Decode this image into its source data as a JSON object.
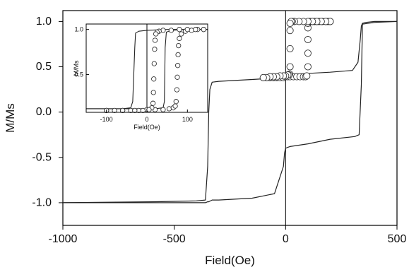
{
  "chart_data": [
    {
      "id": "main",
      "type": "line",
      "title": "",
      "xlabel": "Field(Oe)",
      "ylabel": "M/Ms",
      "xlim": [
        -1000,
        500
      ],
      "ylim": [
        -1.25,
        1.12
      ],
      "x_ticks": [
        -1000,
        -500,
        0,
        500
      ],
      "x_tick_labels": [
        "-1000",
        "-500",
        "0",
        "500"
      ],
      "y_ticks": [
        1.0,
        0.5,
        0.0,
        -0.5,
        -1.0
      ],
      "y_tick_labels": [
        "1.0",
        "0.5",
        "0.0",
        "-0.5",
        "-1.0"
      ],
      "grid": false,
      "vertical_reference_line_x": 0,
      "series": [
        {
          "style": "solid-line",
          "x": [
            -1000,
            -600,
            -400,
            -360,
            -350,
            -345,
            -340,
            -330,
            -300,
            -150,
            -50,
            -15,
            -5,
            0,
            5,
            15,
            50,
            200,
            300,
            325,
            335,
            340,
            345,
            360,
            400,
            500
          ],
          "y": [
            -1.0,
            -0.99,
            -0.98,
            -0.97,
            -0.6,
            0.0,
            0.25,
            0.33,
            0.34,
            0.36,
            0.375,
            0.38,
            0.39,
            0.4,
            0.4,
            0.41,
            0.42,
            0.44,
            0.46,
            0.55,
            0.8,
            0.95,
            0.98,
            0.99,
            1.0,
            1.0
          ]
        },
        {
          "style": "solid-line",
          "x": [
            500,
            400,
            345,
            340,
            330,
            310,
            200,
            100,
            20,
            8,
            0,
            -5,
            -10,
            -50,
            -150,
            -300,
            -330,
            -338,
            -345,
            -350,
            -360,
            -400,
            -600,
            -1000
          ],
          "y": [
            1.0,
            0.99,
            0.97,
            0.3,
            -0.25,
            -0.27,
            -0.3,
            -0.35,
            -0.38,
            -0.39,
            -0.4,
            -0.45,
            -0.6,
            -0.9,
            -0.95,
            -0.97,
            -0.97,
            -0.98,
            -0.99,
            -0.99,
            -1.0,
            -1.0,
            -1.0,
            -1.0
          ]
        },
        {
          "style": "open-circles",
          "x": [
            -100,
            -85,
            -70,
            -55,
            -40,
            -25,
            -10,
            0,
            10,
            20,
            35,
            50,
            65,
            80,
            90,
            95,
            100,
            100,
            100,
            100,
            100,
            105,
            110,
            120,
            130,
            140,
            150,
            165,
            180,
            190,
            200
          ],
          "y": [
            0.38,
            0.38,
            0.38,
            0.38,
            0.38,
            0.38,
            0.38,
            0.39,
            0.39,
            0.39,
            0.39,
            0.39,
            0.39,
            0.39,
            0.39,
            0.4,
            0.5,
            0.65,
            0.8,
            0.93,
            0.98,
            1.0,
            1.0,
            1.0,
            1.0,
            1.0,
            1.0,
            1.0,
            1.0,
            1.0,
            1.0
          ]
        },
        {
          "style": "open-circles",
          "x": [
            200,
            180,
            160,
            140,
            120,
            100,
            80,
            60,
            40,
            30,
            25,
            20,
            20,
            20,
            20,
            18,
            15,
            10,
            0,
            -10,
            -25,
            -40,
            -55,
            -70,
            -85,
            -100
          ],
          "y": [
            1.0,
            1.0,
            1.0,
            1.0,
            1.0,
            1.0,
            1.0,
            1.0,
            1.0,
            1.0,
            1.0,
            0.98,
            0.9,
            0.7,
            0.5,
            0.42,
            0.41,
            0.41,
            0.4,
            0.4,
            0.4,
            0.39,
            0.39,
            0.39,
            0.38,
            0.38
          ]
        }
      ]
    },
    {
      "id": "inset",
      "type": "line",
      "title": "",
      "xlabel": "Field(Oe)",
      "ylabel": "M/Ms",
      "xlim": [
        -150,
        150
      ],
      "ylim": [
        0.08,
        1.06
      ],
      "x_ticks": [
        -100,
        0,
        100
      ],
      "x_tick_labels": [
        "-100",
        "0",
        "100"
      ],
      "y_ticks": [
        1.0,
        0.5
      ],
      "y_tick_labels": [
        "1.0",
        "0.5"
      ],
      "grid": false,
      "vertical_reference_line_x": 0,
      "series": [
        {
          "style": "solid-line",
          "x": [
            -150,
            -60,
            -40,
            -35,
            -30,
            -28,
            -20,
            0,
            50,
            100,
            150
          ],
          "y": [
            0.12,
            0.12,
            0.13,
            0.2,
            0.8,
            0.96,
            0.98,
            0.99,
            1.0,
            1.0,
            1.0
          ]
        },
        {
          "style": "solid-line",
          "x": [
            150,
            100,
            60,
            48,
            45,
            43,
            40,
            20,
            0,
            -50,
            -150
          ],
          "y": [
            1.0,
            1.0,
            0.99,
            0.97,
            0.8,
            0.2,
            0.13,
            0.12,
            0.12,
            0.12,
            0.12
          ]
        },
        {
          "style": "open-circles",
          "x": [
            -100,
            -80,
            -60,
            -40,
            -20,
            0,
            20,
            40,
            55,
            65,
            70,
            72,
            74,
            75,
            76,
            77,
            78,
            80,
            85,
            95,
            110,
            125,
            140
          ],
          "y": [
            0.1,
            0.1,
            0.1,
            0.1,
            0.1,
            0.11,
            0.11,
            0.11,
            0.12,
            0.13,
            0.15,
            0.2,
            0.33,
            0.47,
            0.6,
            0.72,
            0.82,
            0.9,
            0.95,
            0.98,
            0.99,
            1.0,
            1.0
          ]
        },
        {
          "style": "open-circles",
          "x": [
            140,
            120,
            100,
            80,
            60,
            40,
            30,
            25,
            22,
            20,
            19,
            18,
            17,
            16,
            15,
            12,
            5,
            -10,
            -30,
            -60,
            -100
          ],
          "y": [
            1.0,
            1.0,
            1.0,
            1.0,
            0.99,
            0.99,
            0.98,
            0.97,
            0.95,
            0.88,
            0.78,
            0.62,
            0.45,
            0.3,
            0.18,
            0.13,
            0.11,
            0.1,
            0.1,
            0.1,
            0.1
          ]
        }
      ]
    }
  ]
}
